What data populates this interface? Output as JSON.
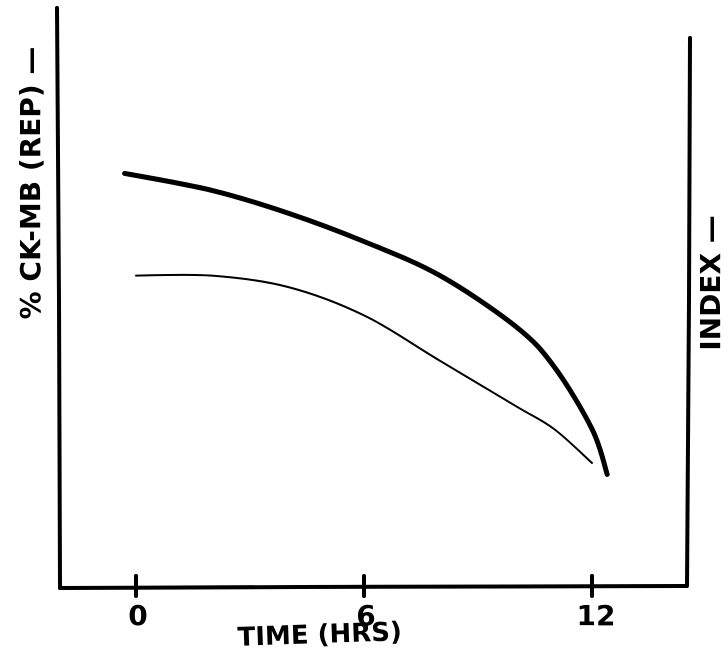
{
  "chart_data": {
    "type": "line",
    "title": "",
    "xlabel": "TIME (HRS)",
    "ylabel_left": "% CK-MB (REP) —",
    "ylabel_right": "INDEX —",
    "xlim": [
      -2,
      14.5
    ],
    "ylim": [
      0,
      100
    ],
    "x_ticks": [
      {
        "value": 0,
        "label": "0"
      },
      {
        "value": 6,
        "label": "6"
      },
      {
        "value": 12,
        "label": "12"
      }
    ],
    "y_ticks": [],
    "grid": false,
    "legend": "none",
    "series": [
      {
        "line_style": "thick",
        "color": "#000000",
        "x": [
          -0.3,
          2,
          4,
          6,
          8,
          10,
          11,
          12,
          12.4
        ],
        "y": [
          73,
          70,
          66,
          61,
          55,
          46,
          39,
          28,
          20
        ]
      },
      {
        "line_style": "thin",
        "color": "#000000",
        "x": [
          0,
          2,
          4,
          6,
          8,
          10,
          11,
          12
        ],
        "y": [
          55,
          55,
          53,
          48,
          40,
          32,
          28,
          22
        ]
      }
    ]
  }
}
